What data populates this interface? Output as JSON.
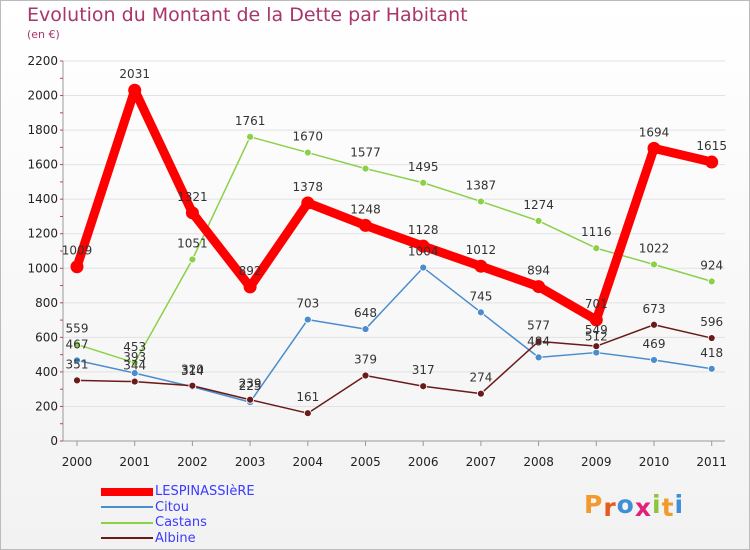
{
  "header": {
    "title": "Evolution du Montant de la Dette par Habitant",
    "subtitle": "(en €)"
  },
  "brand": {
    "letters": [
      "P",
      "r",
      "o",
      "x",
      "i",
      "t",
      "i"
    ],
    "colors": [
      "#f29a2e",
      "#e85a1a",
      "#3f8fd6",
      "#e0227a",
      "#8cc63f",
      "#f29a2e",
      "#3f8fd6"
    ]
  },
  "chart_data": {
    "type": "line",
    "title": "Evolution du Montant de la Dette par Habitant",
    "subtitle": "(en €)",
    "xlabel": "",
    "ylabel": "",
    "x": [
      "2000",
      "2001",
      "2002",
      "2003",
      "2004",
      "2005",
      "2006",
      "2007",
      "2008",
      "2009",
      "2010",
      "2011"
    ],
    "ylim": [
      0,
      2200
    ],
    "yticks": [
      0,
      200,
      400,
      600,
      800,
      1000,
      1200,
      1400,
      1600,
      1800,
      2000,
      2200
    ],
    "grid": "horizontal",
    "legend_position": "bottom-left",
    "series": [
      {
        "name": "LESPINASSIèRE",
        "color": "#ff0000",
        "values": [
          1009,
          2031,
          1321,
          892,
          1378,
          1248,
          1128,
          1012,
          894,
          701,
          1694,
          1615
        ]
      },
      {
        "name": "Citou",
        "color": "#4a8ccc",
        "values": [
          467,
          393,
          314,
          225,
          703,
          648,
          1004,
          745,
          484,
          512,
          469,
          418
        ]
      },
      {
        "name": "Castans",
        "color": "#8cd04a",
        "values": [
          559,
          453,
          1051,
          1761,
          1670,
          1577,
          1495,
          1387,
          1274,
          1116,
          1022,
          924
        ]
      },
      {
        "name": "Albine",
        "color": "#6b1a1a",
        "values": [
          351,
          344,
          320,
          239,
          161,
          379,
          317,
          274,
          577,
          549,
          673,
          596
        ]
      }
    ]
  }
}
